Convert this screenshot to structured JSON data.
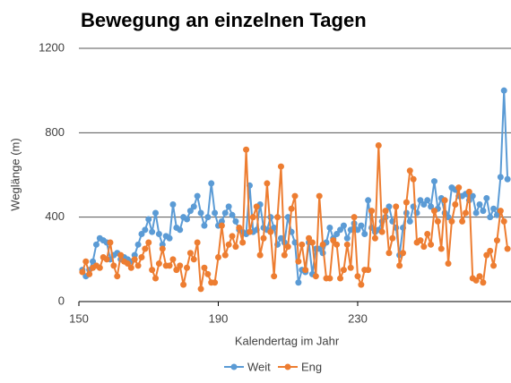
{
  "chart_data": {
    "type": "line",
    "title": "Bewegung an einzelnen Tagen",
    "xlabel": "Kalendertag im Jahr",
    "ylabel": "Weglänge (m)",
    "x": [
      151,
      152,
      153,
      154,
      155,
      156,
      157,
      158,
      159,
      160,
      161,
      162,
      163,
      164,
      165,
      166,
      167,
      168,
      169,
      170,
      171,
      172,
      173,
      174,
      175,
      176,
      177,
      178,
      179,
      180,
      181,
      182,
      183,
      184,
      185,
      186,
      187,
      188,
      189,
      190,
      191,
      192,
      193,
      194,
      195,
      196,
      197,
      198,
      199,
      200,
      201,
      202,
      203,
      204,
      205,
      206,
      207,
      208,
      209,
      210,
      211,
      212,
      213,
      214,
      215,
      216,
      217,
      218,
      219,
      220,
      221,
      222,
      223,
      224,
      225,
      226,
      227,
      228,
      229,
      230,
      231,
      232,
      233,
      234,
      235,
      236,
      237,
      238,
      239,
      240,
      241,
      242,
      243,
      244,
      245,
      246,
      247,
      248,
      249,
      250,
      251,
      252,
      253,
      254,
      255,
      256,
      257,
      258,
      259,
      260,
      261,
      262,
      263,
      264,
      265,
      266,
      267,
      268,
      269,
      270,
      271,
      272,
      273
    ],
    "series": [
      {
        "name": "Weit",
        "color": "#5b9bd5",
        "values": [
          150,
          120,
          150,
          190,
          270,
          300,
          290,
          280,
          200,
          220,
          230,
          200,
          210,
          200,
          190,
          220,
          270,
          320,
          340,
          390,
          330,
          420,
          320,
          270,
          310,
          300,
          460,
          350,
          340,
          400,
          390,
          430,
          450,
          500,
          420,
          360,
          400,
          560,
          420,
          360,
          380,
          420,
          450,
          410,
          380,
          340,
          330,
          320,
          550,
          330,
          340,
          460,
          350,
          340,
          400,
          350,
          270,
          300,
          280,
          400,
          330,
          280,
          90,
          150,
          140,
          280,
          130,
          250,
          250,
          230,
          280,
          350,
          300,
          320,
          340,
          360,
          300,
          340,
          370,
          340,
          360,
          320,
          480,
          350,
          330,
          340,
          380,
          400,
          450,
          380,
          350,
          220,
          350,
          420,
          380,
          450,
          420,
          480,
          460,
          480,
          450,
          570,
          440,
          490,
          420,
          400,
          540,
          530,
          500,
          500,
          510,
          480,
          500,
          420,
          460,
          430,
          490,
          400,
          440,
          410,
          590,
          1000,
          580
        ]
      },
      {
        "name": "Eng",
        "color": "#ed7d31",
        "values": [
          140,
          190,
          130,
          160,
          170,
          160,
          210,
          200,
          280,
          170,
          120,
          220,
          190,
          180,
          160,
          200,
          170,
          210,
          250,
          280,
          150,
          110,
          180,
          250,
          170,
          170,
          200,
          150,
          170,
          80,
          160,
          230,
          200,
          280,
          60,
          160,
          130,
          90,
          90,
          210,
          360,
          220,
          270,
          310,
          260,
          350,
          280,
          720,
          330,
          400,
          450,
          220,
          300,
          560,
          330,
          120,
          400,
          640,
          220,
          260,
          440,
          500,
          190,
          270,
          150,
          300,
          280,
          120,
          500,
          270,
          110,
          110,
          290,
          270,
          110,
          150,
          270,
          160,
          400,
          120,
          80,
          150,
          150,
          430,
          300,
          740,
          330,
          430,
          230,
          300,
          450,
          170,
          230,
          470,
          620,
          580,
          280,
          290,
          260,
          320,
          270,
          430,
          380,
          250,
          480,
          180,
          380,
          460,
          540,
          380,
          420,
          520,
          110,
          100,
          120,
          90,
          220,
          240,
          170,
          290,
          430,
          380,
          250
        ]
      }
    ],
    "xlim": [
      150,
      274
    ],
    "xticks": [
      150,
      190,
      230
    ],
    "ylim": [
      0,
      1200
    ],
    "yticks": [
      0,
      400,
      800,
      1200
    ],
    "grid": true,
    "legend": "bottom"
  }
}
